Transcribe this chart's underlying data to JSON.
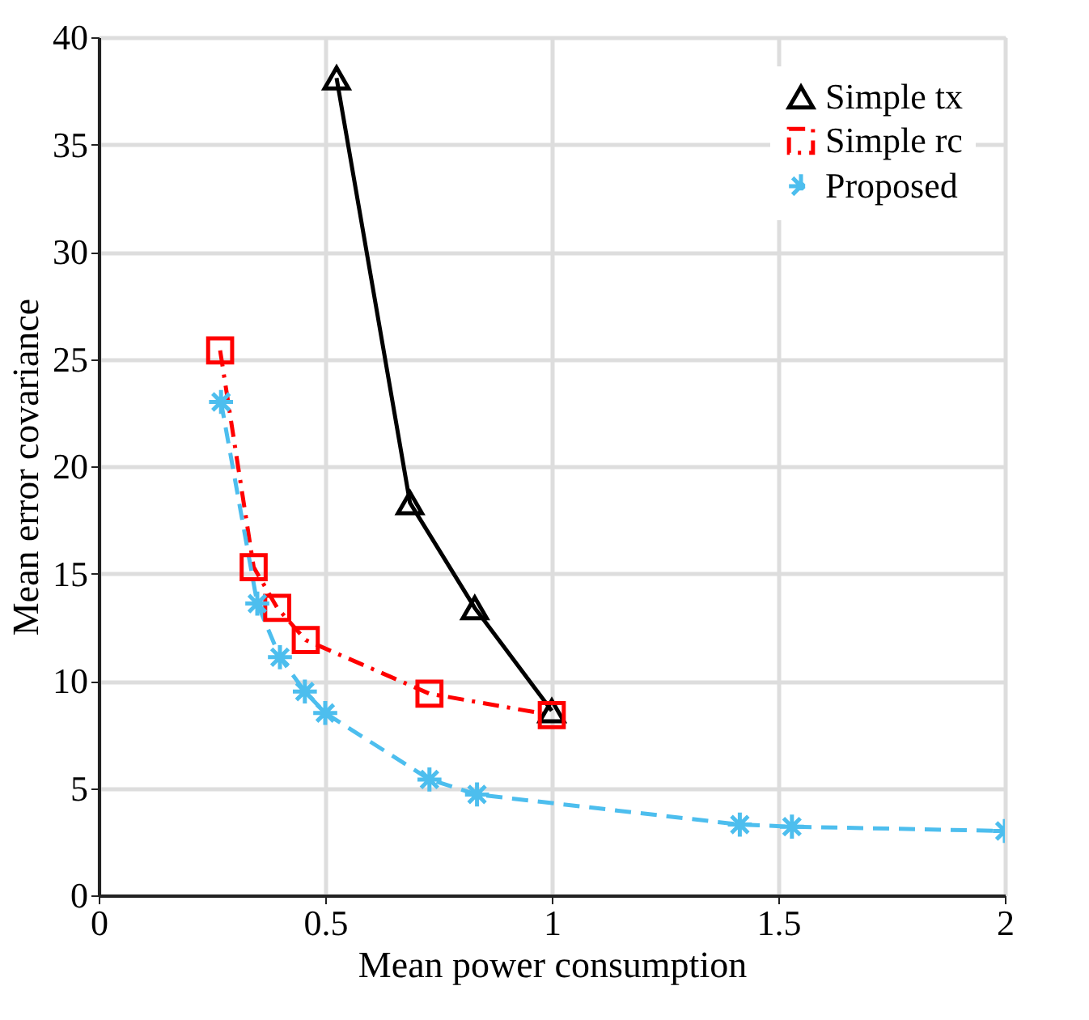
{
  "chart_data": {
    "type": "line",
    "xlabel": "Mean power consumption",
    "ylabel": "Mean error covariance",
    "xlim": [
      0,
      2
    ],
    "xticks": [
      0,
      0.5,
      1,
      1.5,
      2
    ],
    "ylim": [
      0,
      40
    ],
    "yticks": [
      0,
      5,
      10,
      15,
      20,
      25,
      30,
      35,
      40
    ],
    "grid": true,
    "legend": "top right",
    "series": [
      {
        "name": "Simple tx",
        "color": "#000000",
        "marker": "triangle",
        "line_style": "solid",
        "x": [
          0.525,
          0.687,
          0.83,
          1.0
        ],
        "values": [
          38.1,
          18.3,
          13.4,
          8.6
        ]
      },
      {
        "name": "Simple rc",
        "color": "#ff0000",
        "marker": "square",
        "line_style": "dashdot",
        "x": [
          0.268,
          0.342,
          0.394,
          0.457,
          0.73,
          1.0
        ],
        "values": [
          25.4,
          15.3,
          13.4,
          11.9,
          9.4,
          8.4
        ]
      },
      {
        "name": "Proposed",
        "color": "#4dbeee",
        "marker": "cross",
        "line_style": "dashed",
        "x": [
          0.27,
          0.35,
          0.4,
          0.455,
          0.5,
          0.73,
          0.835,
          1.415,
          1.53,
          2.0
        ],
        "values": [
          23.0,
          13.6,
          11.1,
          9.5,
          8.5,
          5.4,
          4.7,
          3.3,
          3.2,
          3.0
        ]
      }
    ]
  }
}
